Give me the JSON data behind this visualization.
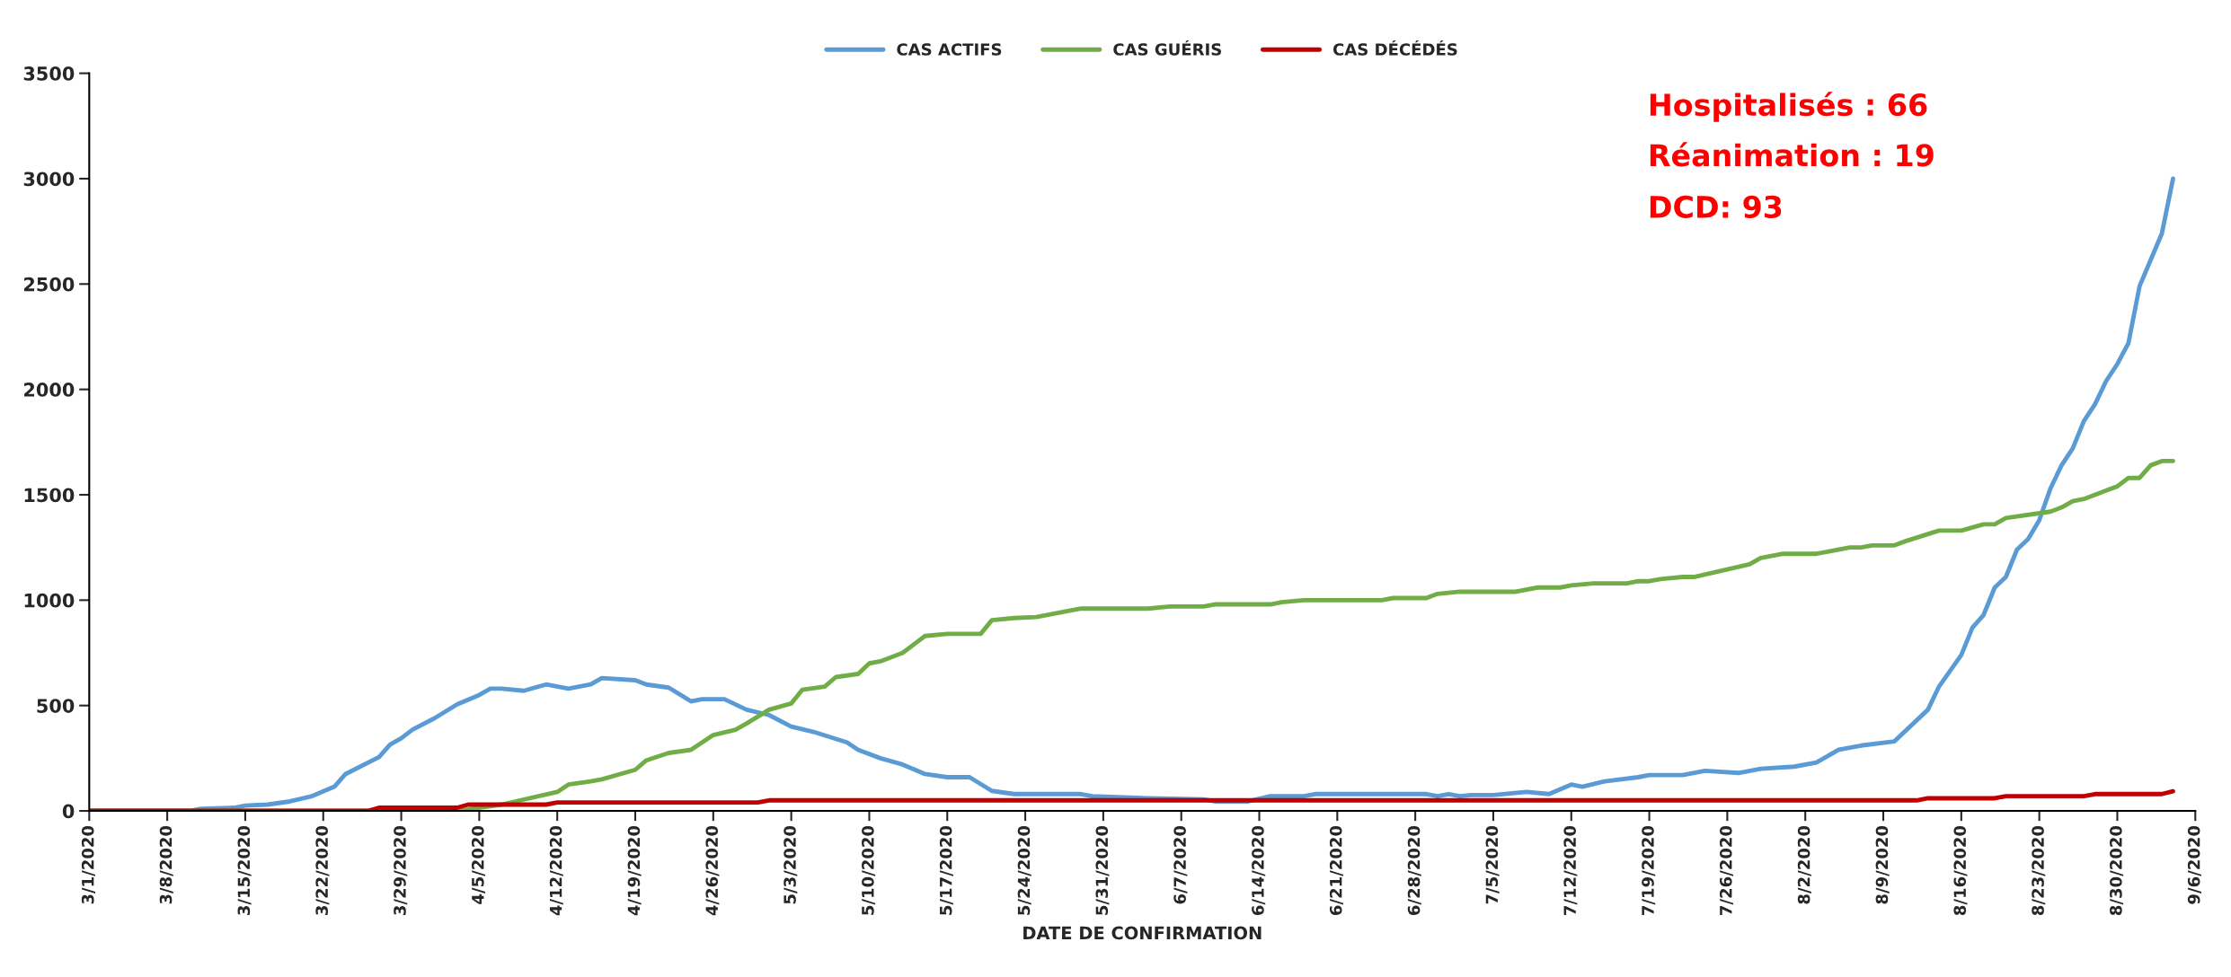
{
  "chart_data": {
    "type": "line",
    "xlabel": "DATE DE CONFIRMATION",
    "annotations": [
      "Hospitalisés : 66",
      "Réanimation : 19",
      "DCD: 93"
    ],
    "legend": "top",
    "grid": false,
    "marker": "none",
    "line_style": "solid",
    "xlim": [
      "2020-03-01",
      "2020-09-06"
    ],
    "xticks": [
      {
        "value": "2020-03-01",
        "label": "3/1/2020"
      },
      {
        "value": "2020-03-08",
        "label": "3/8/2020"
      },
      {
        "value": "2020-03-15",
        "label": "3/15/2020"
      },
      {
        "value": "2020-03-22",
        "label": "3/22/2020"
      },
      {
        "value": "2020-03-29",
        "label": "3/29/2020"
      },
      {
        "value": "2020-04-05",
        "label": "4/5/2020"
      },
      {
        "value": "2020-04-12",
        "label": "4/12/2020"
      },
      {
        "value": "2020-04-19",
        "label": "4/19/2020"
      },
      {
        "value": "2020-04-26",
        "label": "4/26/2020"
      },
      {
        "value": "2020-05-03",
        "label": "5/3/2020"
      },
      {
        "value": "2020-05-10",
        "label": "5/10/2020"
      },
      {
        "value": "2020-05-17",
        "label": "5/17/2020"
      },
      {
        "value": "2020-05-24",
        "label": "5/24/2020"
      },
      {
        "value": "2020-05-31",
        "label": "5/31/2020"
      },
      {
        "value": "2020-06-07",
        "label": "6/7/2020"
      },
      {
        "value": "2020-06-14",
        "label": "6/14/2020"
      },
      {
        "value": "2020-06-21",
        "label": "6/21/2020"
      },
      {
        "value": "2020-06-28",
        "label": "6/28/2020"
      },
      {
        "value": "2020-07-05",
        "label": "7/5/2020"
      },
      {
        "value": "2020-07-12",
        "label": "7/12/2020"
      },
      {
        "value": "2020-07-19",
        "label": "7/19/2020"
      },
      {
        "value": "2020-07-26",
        "label": "7/26/2020"
      },
      {
        "value": "2020-08-02",
        "label": "8/2/2020"
      },
      {
        "value": "2020-08-09",
        "label": "8/9/2020"
      },
      {
        "value": "2020-08-16",
        "label": "8/16/2020"
      },
      {
        "value": "2020-08-23",
        "label": "8/23/2020"
      },
      {
        "value": "2020-08-30",
        "label": "8/30/2020"
      },
      {
        "value": "2020-09-06",
        "label": "9/6/2020"
      }
    ],
    "ylim": [
      0,
      3500
    ],
    "yticks": [
      0,
      500,
      1000,
      1500,
      2000,
      2500,
      3000,
      3500
    ],
    "series": [
      {
        "name": "CAS ACTIFS",
        "color": "#5b9bd5",
        "x": [
          "2020-03-01",
          "2020-03-10",
          "2020-03-11",
          "2020-03-14",
          "2020-03-15",
          "2020-03-17",
          "2020-03-19",
          "2020-03-21",
          "2020-03-23",
          "2020-03-24",
          "2020-03-27",
          "2020-03-28",
          "2020-03-29",
          "2020-03-30",
          "2020-04-01",
          "2020-04-03",
          "2020-04-05",
          "2020-04-06",
          "2020-04-07",
          "2020-04-09",
          "2020-04-11",
          "2020-04-13",
          "2020-04-15",
          "2020-04-16",
          "2020-04-19",
          "2020-04-20",
          "2020-04-22",
          "2020-04-24",
          "2020-04-25",
          "2020-04-27",
          "2020-04-29",
          "2020-05-01",
          "2020-05-03",
          "2020-05-05",
          "2020-05-08",
          "2020-05-09",
          "2020-05-11",
          "2020-05-13",
          "2020-05-15",
          "2020-05-17",
          "2020-05-19",
          "2020-05-21",
          "2020-05-23",
          "2020-05-29",
          "2020-05-30",
          "2020-06-04",
          "2020-06-09",
          "2020-06-10",
          "2020-06-13",
          "2020-06-15",
          "2020-06-18",
          "2020-06-19",
          "2020-06-29",
          "2020-06-30",
          "2020-07-01",
          "2020-07-02",
          "2020-07-03",
          "2020-07-05",
          "2020-07-08",
          "2020-07-10",
          "2020-07-12",
          "2020-07-13",
          "2020-07-15",
          "2020-07-18",
          "2020-07-19",
          "2020-07-22",
          "2020-07-24",
          "2020-07-27",
          "2020-07-29",
          "2020-08-01",
          "2020-08-03",
          "2020-08-05",
          "2020-08-07",
          "2020-08-10",
          "2020-08-13",
          "2020-08-14",
          "2020-08-16",
          "2020-08-17",
          "2020-08-18",
          "2020-08-19",
          "2020-08-20",
          "2020-08-21",
          "2020-08-22",
          "2020-08-23",
          "2020-08-24",
          "2020-08-25",
          "2020-08-26",
          "2020-08-27",
          "2020-08-28",
          "2020-08-29",
          "2020-08-30",
          "2020-08-31",
          "2020-09-01",
          "2020-09-03",
          "2020-09-04"
        ],
        "values": [
          0,
          0,
          10,
          15,
          25,
          30,
          45,
          70,
          115,
          175,
          255,
          315,
          345,
          385,
          440,
          505,
          550,
          580,
          580,
          570,
          600,
          580,
          600,
          630,
          620,
          600,
          585,
          520,
          530,
          530,
          480,
          455,
          400,
          375,
          325,
          290,
          250,
          220,
          175,
          160,
          160,
          95,
          80,
          80,
          70,
          60,
          55,
          45,
          45,
          70,
          70,
          80,
          80,
          70,
          80,
          70,
          75,
          75,
          90,
          80,
          125,
          115,
          140,
          160,
          170,
          170,
          190,
          180,
          200,
          210,
          230,
          290,
          310,
          330,
          480,
          590,
          740,
          870,
          930,
          1060,
          1110,
          1240,
          1290,
          1380,
          1530,
          1640,
          1720,
          1850,
          1930,
          2040,
          2120,
          2220,
          2490,
          2740,
          3000
        ]
      },
      {
        "name": "CAS GUÉRIS",
        "color": "#70ad47",
        "x": [
          "2020-03-01",
          "2020-04-03",
          "2020-04-07",
          "2020-04-12",
          "2020-04-13",
          "2020-04-15",
          "2020-04-16",
          "2020-04-19",
          "2020-04-20",
          "2020-04-22",
          "2020-04-24",
          "2020-04-26",
          "2020-04-28",
          "2020-04-29",
          "2020-05-01",
          "2020-05-03",
          "2020-05-04",
          "2020-05-06",
          "2020-05-07",
          "2020-05-09",
          "2020-05-10",
          "2020-05-11",
          "2020-05-13",
          "2020-05-14",
          "2020-05-15",
          "2020-05-17",
          "2020-05-20",
          "2020-05-21",
          "2020-05-23",
          "2020-05-25",
          "2020-05-27",
          "2020-05-29",
          "2020-06-03",
          "2020-06-04",
          "2020-06-06",
          "2020-06-09",
          "2020-06-10",
          "2020-06-15",
          "2020-06-16",
          "2020-06-18",
          "2020-06-25",
          "2020-06-26",
          "2020-06-29",
          "2020-06-30",
          "2020-07-02",
          "2020-07-07",
          "2020-07-09",
          "2020-07-11",
          "2020-07-12",
          "2020-07-14",
          "2020-07-17",
          "2020-07-18",
          "2020-07-19",
          "2020-07-20",
          "2020-07-22",
          "2020-07-23",
          "2020-07-28",
          "2020-07-29",
          "2020-07-31",
          "2020-08-03",
          "2020-08-06",
          "2020-08-07",
          "2020-08-08",
          "2020-08-10",
          "2020-08-11",
          "2020-08-14",
          "2020-08-16",
          "2020-08-18",
          "2020-08-19",
          "2020-08-20",
          "2020-08-24",
          "2020-08-25",
          "2020-08-26",
          "2020-08-27",
          "2020-08-29",
          "2020-08-30",
          "2020-08-31",
          "2020-09-01",
          "2020-09-02",
          "2020-09-03",
          "2020-09-04"
        ],
        "values": [
          0,
          0,
          30,
          90,
          125,
          140,
          150,
          195,
          240,
          275,
          290,
          360,
          385,
          415,
          480,
          510,
          575,
          590,
          635,
          650,
          700,
          710,
          750,
          790,
          830,
          840,
          840,
          905,
          915,
          920,
          940,
          960,
          960,
          960,
          970,
          970,
          980,
          980,
          990,
          1000,
          1000,
          1010,
          1010,
          1030,
          1040,
          1040,
          1060,
          1060,
          1070,
          1080,
          1080,
          1090,
          1090,
          1100,
          1110,
          1110,
          1170,
          1200,
          1220,
          1220,
          1250,
          1250,
          1260,
          1260,
          1280,
          1330,
          1330,
          1360,
          1360,
          1390,
          1420,
          1440,
          1470,
          1480,
          1520,
          1540,
          1580,
          1580,
          1640,
          1660,
          1660
        ]
      },
      {
        "name": "CAS DÉCÉDÉS",
        "color": "#c00000",
        "x": [
          "2020-03-01",
          "2020-03-26",
          "2020-03-27",
          "2020-04-03",
          "2020-04-04",
          "2020-04-11",
          "2020-04-12",
          "2020-04-30",
          "2020-05-01",
          "2020-08-12",
          "2020-08-13",
          "2020-08-19",
          "2020-08-20",
          "2020-08-27",
          "2020-08-28",
          "2020-09-03",
          "2020-09-04"
        ],
        "values": [
          0,
          0,
          15,
          15,
          30,
          30,
          40,
          40,
          50,
          50,
          60,
          60,
          70,
          70,
          80,
          80,
          93
        ]
      }
    ]
  }
}
